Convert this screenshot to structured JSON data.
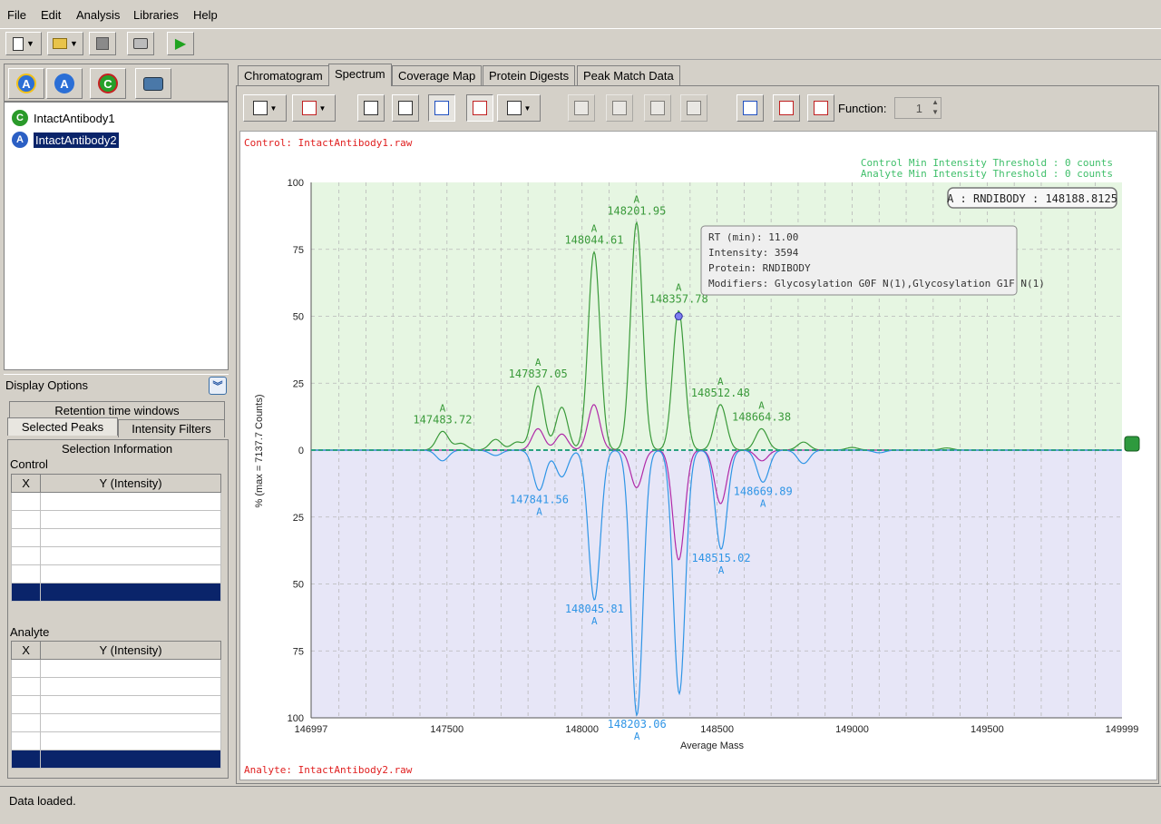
{
  "menu": [
    "File",
    "Edit",
    "Analysis",
    "Libraries",
    "Help"
  ],
  "tree": {
    "items": [
      {
        "label": "IntactAntibody1",
        "icon": "C",
        "color": "#2a9a2a"
      },
      {
        "label": "IntactAntibody2",
        "icon": "A",
        "color": "#2b5fc4",
        "selected": true
      }
    ]
  },
  "display_options": {
    "title": "Display Options",
    "tabs": [
      "Retention time windows",
      "Selected Peaks",
      "Intensity Filters"
    ],
    "selection_title": "Selection Information",
    "control_label": "Control",
    "analyte_label": "Analyte",
    "col_x": "X",
    "col_y": "Y (Intensity)"
  },
  "main_tabs": [
    "Chromatogram",
    "Spectrum",
    "Coverage Map",
    "Protein Digests",
    "Peak Match Data"
  ],
  "active_tab": "Spectrum",
  "spectrum_toolbar": {
    "function_label": "Function:",
    "function_value": "1"
  },
  "status": "Data loaded.",
  "colors": {
    "control": "#3a9a3a",
    "analyte": "#2f95e6",
    "diff": "#b02aa8",
    "red": "#e02020",
    "control_bg": "#e6f6e2",
    "analyte_bg": "#e7e6f7"
  },
  "chart_data": {
    "type": "line",
    "control_file": "Control: IntactAntibody1.raw",
    "analyte_file": "Analyte: IntactAntibody2.raw",
    "threshold_control": "Control Min Intensity Threshold : 0 counts",
    "threshold_analyte": "Analyte Min Intensity Threshold : 0 counts",
    "badge": "A : RNDIBODY : 148188.8125",
    "xlabel": "Average Mass",
    "ylabel": "% (max = 7137.7 Counts)",
    "xlim": [
      146997,
      149999
    ],
    "ylim": [
      -100,
      100
    ],
    "xticks": [
      146997,
      147500,
      148000,
      148500,
      149000,
      149500,
      149999
    ],
    "yticks_top": [
      100,
      75,
      50,
      25,
      0
    ],
    "yticks_bottom": [
      25,
      50,
      75,
      100
    ],
    "tooltip": {
      "rt": "RT (min):  11.00",
      "intensity": "Intensity:  3594",
      "protein": "Protein: RNDIBODY",
      "modifiers": "Modifiers: Glycosylation G0F N(1),Glycosylation G1F N(1)"
    },
    "control_peaks": [
      {
        "x": 147483.72,
        "y": 7,
        "label": "147483.72"
      },
      {
        "x": 147552,
        "y": 2.5
      },
      {
        "x": 147680,
        "y": 4
      },
      {
        "x": 147760,
        "y": 3
      },
      {
        "x": 147837.05,
        "y": 24,
        "label": "147837.05"
      },
      {
        "x": 147925,
        "y": 16
      },
      {
        "x": 148044.61,
        "y": 74,
        "label": "148044.61"
      },
      {
        "x": 148201.95,
        "y": 85,
        "label": "148201.95"
      },
      {
        "x": 148357.78,
        "y": 52,
        "label": "148357.78"
      },
      {
        "x": 148512.48,
        "y": 17,
        "label": "148512.48"
      },
      {
        "x": 148664.38,
        "y": 8,
        "label": "148664.38"
      },
      {
        "x": 148820,
        "y": 3
      },
      {
        "x": 149000,
        "y": 1
      },
      {
        "x": 149350,
        "y": 0.8
      }
    ],
    "analyte_peaks": [
      {
        "x": 147483,
        "y": 4
      },
      {
        "x": 147680,
        "y": 2
      },
      {
        "x": 147841.56,
        "y": 15,
        "label": "147841.56"
      },
      {
        "x": 147925,
        "y": 10
      },
      {
        "x": 148045.81,
        "y": 56,
        "label": "148045.81"
      },
      {
        "x": 148203.06,
        "y": 99,
        "label": "148203.06"
      },
      {
        "x": 148360,
        "y": 91
      },
      {
        "x": 148515.02,
        "y": 37,
        "label": "148515.02"
      },
      {
        "x": 148669.89,
        "y": 12,
        "label": "148669.89"
      },
      {
        "x": 148820,
        "y": 5
      },
      {
        "x": 149100,
        "y": 1
      }
    ],
    "diff_peaks": [
      {
        "x": 147837,
        "y": 8
      },
      {
        "x": 147925,
        "y": 6
      },
      {
        "x": 148044,
        "y": 17
      },
      {
        "x": 148202,
        "y": -14
      },
      {
        "x": 148358,
        "y": -41
      },
      {
        "x": 148513,
        "y": -20
      },
      {
        "x": 148666,
        "y": -4
      }
    ],
    "marked_point": {
      "x": 148357.78,
      "y": 50
    }
  }
}
